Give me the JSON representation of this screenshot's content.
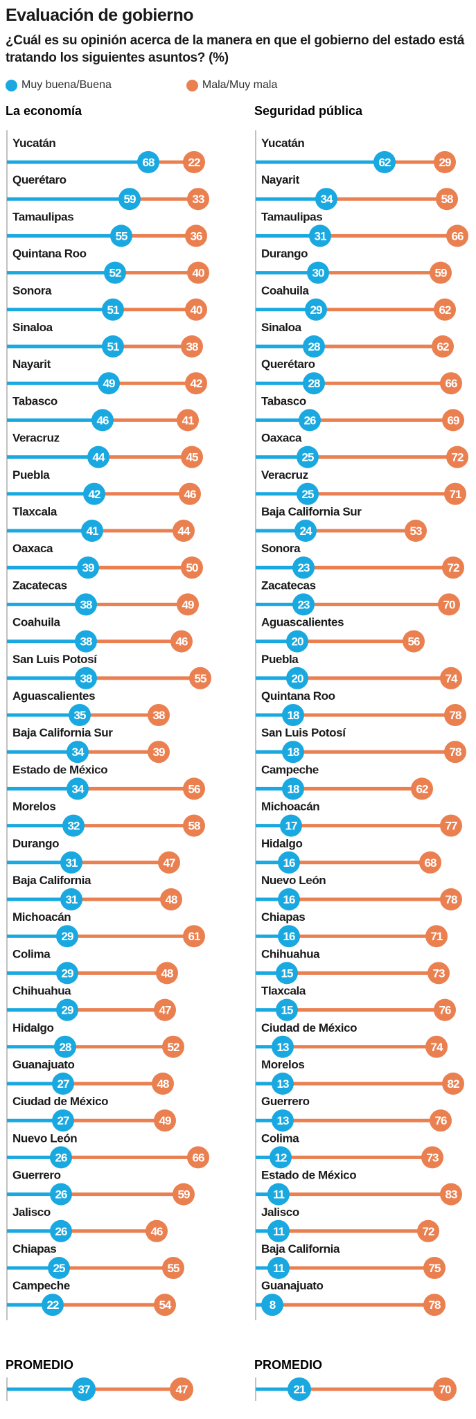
{
  "title": "Evaluación de gobierno",
  "subtitle": "¿Cuál es su opinión acerca de la manera en que el gobierno del estado está tratando los siguientes asuntos? (%)",
  "colors": {
    "good": "#19a8df",
    "bad": "#ea7f50",
    "axis": "#9a9a9a"
  },
  "legend": [
    {
      "label": "Muy buena/Buena",
      "color": "#19a8df"
    },
    {
      "label": "Mala/Muy mala",
      "color": "#ea7f50"
    }
  ],
  "chart_data": [
    {
      "type": "bar",
      "title": "La economía",
      "encoding": "stacked lollipop: blue marker at good value, orange marker at good + bad",
      "series": [
        {
          "name": "Muy buena/Buena"
        },
        {
          "name": "Mala/Muy mala"
        }
      ],
      "rows": [
        {
          "state": "Yucatán",
          "good": 68,
          "bad": 22
        },
        {
          "state": "Querétaro",
          "good": 59,
          "bad": 33
        },
        {
          "state": "Tamaulipas",
          "good": 55,
          "bad": 36
        },
        {
          "state": "Quintana Roo",
          "good": 52,
          "bad": 40
        },
        {
          "state": "Sonora",
          "good": 51,
          "bad": 40
        },
        {
          "state": "Sinaloa",
          "good": 51,
          "bad": 38
        },
        {
          "state": "Nayarit",
          "good": 49,
          "bad": 42
        },
        {
          "state": "Tabasco",
          "good": 46,
          "bad": 41
        },
        {
          "state": "Veracruz",
          "good": 44,
          "bad": 45
        },
        {
          "state": "Puebla",
          "good": 42,
          "bad": 46
        },
        {
          "state": "Tlaxcala",
          "good": 41,
          "bad": 44
        },
        {
          "state": "Oaxaca",
          "good": 39,
          "bad": 50
        },
        {
          "state": "Zacatecas",
          "good": 38,
          "bad": 49
        },
        {
          "state": "Coahuila",
          "good": 38,
          "bad": 46
        },
        {
          "state": "San Luis Potosí",
          "good": 38,
          "bad": 55
        },
        {
          "state": "Aguascalientes",
          "good": 35,
          "bad": 38
        },
        {
          "state": "Baja California Sur",
          "good": 34,
          "bad": 39
        },
        {
          "state": "Estado de México",
          "good": 34,
          "bad": 56
        },
        {
          "state": "Morelos",
          "good": 32,
          "bad": 58
        },
        {
          "state": "Durango",
          "good": 31,
          "bad": 47
        },
        {
          "state": "Baja California",
          "good": 31,
          "bad": 48
        },
        {
          "state": "Michoacán",
          "good": 29,
          "bad": 61
        },
        {
          "state": "Colima",
          "good": 29,
          "bad": 48
        },
        {
          "state": "Chihuahua",
          "good": 29,
          "bad": 47
        },
        {
          "state": "Hidalgo",
          "good": 28,
          "bad": 52
        },
        {
          "state": "Guanajuato",
          "good": 27,
          "bad": 48
        },
        {
          "state": "Ciudad de México",
          "good": 27,
          "bad": 49
        },
        {
          "state": "Nuevo León",
          "good": 26,
          "bad": 66
        },
        {
          "state": "Guerrero",
          "good": 26,
          "bad": 59
        },
        {
          "state": "Jalisco",
          "good": 26,
          "bad": 46
        },
        {
          "state": "Chiapas",
          "good": 25,
          "bad": 55
        },
        {
          "state": "Campeche",
          "good": 22,
          "bad": 54
        }
      ],
      "average": {
        "label": "PROMEDIO",
        "good": 37,
        "bad": 47
      }
    },
    {
      "type": "bar",
      "title": "Seguridad pública",
      "encoding": "stacked lollipop: blue marker at good value, orange marker at good + bad",
      "series": [
        {
          "name": "Muy buena/Buena"
        },
        {
          "name": "Mala/Muy mala"
        }
      ],
      "rows": [
        {
          "state": "Yucatán",
          "good": 62,
          "bad": 29
        },
        {
          "state": "Nayarit",
          "good": 34,
          "bad": 58
        },
        {
          "state": "Tamaulipas",
          "good": 31,
          "bad": 66
        },
        {
          "state": "Durango",
          "good": 30,
          "bad": 59
        },
        {
          "state": "Coahuila",
          "good": 29,
          "bad": 62
        },
        {
          "state": "Sinaloa",
          "good": 28,
          "bad": 62
        },
        {
          "state": "Querétaro",
          "good": 28,
          "bad": 66
        },
        {
          "state": "Tabasco",
          "good": 26,
          "bad": 69
        },
        {
          "state": "Oaxaca",
          "good": 25,
          "bad": 72
        },
        {
          "state": "Veracruz",
          "good": 25,
          "bad": 71
        },
        {
          "state": "Baja California Sur",
          "good": 24,
          "bad": 53
        },
        {
          "state": "Sonora",
          "good": 23,
          "bad": 72
        },
        {
          "state": "Zacatecas",
          "good": 23,
          "bad": 70
        },
        {
          "state": "Aguascalientes",
          "good": 20,
          "bad": 56
        },
        {
          "state": "Puebla",
          "good": 20,
          "bad": 74
        },
        {
          "state": "Quintana Roo",
          "good": 18,
          "bad": 78
        },
        {
          "state": "San Luis Potosí",
          "good": 18,
          "bad": 78
        },
        {
          "state": "Campeche",
          "good": 18,
          "bad": 62
        },
        {
          "state": "Michoacán",
          "good": 17,
          "bad": 77
        },
        {
          "state": "Hidalgo",
          "good": 16,
          "bad": 68
        },
        {
          "state": "Nuevo León",
          "good": 16,
          "bad": 78
        },
        {
          "state": "Chiapas",
          "good": 16,
          "bad": 71
        },
        {
          "state": "Chihuahua",
          "good": 15,
          "bad": 73
        },
        {
          "state": "Tlaxcala",
          "good": 15,
          "bad": 76
        },
        {
          "state": "Ciudad de México",
          "good": 13,
          "bad": 74
        },
        {
          "state": "Morelos",
          "good": 13,
          "bad": 82
        },
        {
          "state": "Guerrero",
          "good": 13,
          "bad": 76
        },
        {
          "state": "Colima",
          "good": 12,
          "bad": 73
        },
        {
          "state": "Estado de México",
          "good": 11,
          "bad": 83
        },
        {
          "state": "Jalisco",
          "good": 11,
          "bad": 72
        },
        {
          "state": "Baja California",
          "good": 11,
          "bad": 75
        },
        {
          "state": "Guanajuato",
          "good": 8,
          "bad": 78
        }
      ],
      "average": {
        "label": "PROMEDIO",
        "good": 21,
        "bad": 70
      }
    }
  ]
}
